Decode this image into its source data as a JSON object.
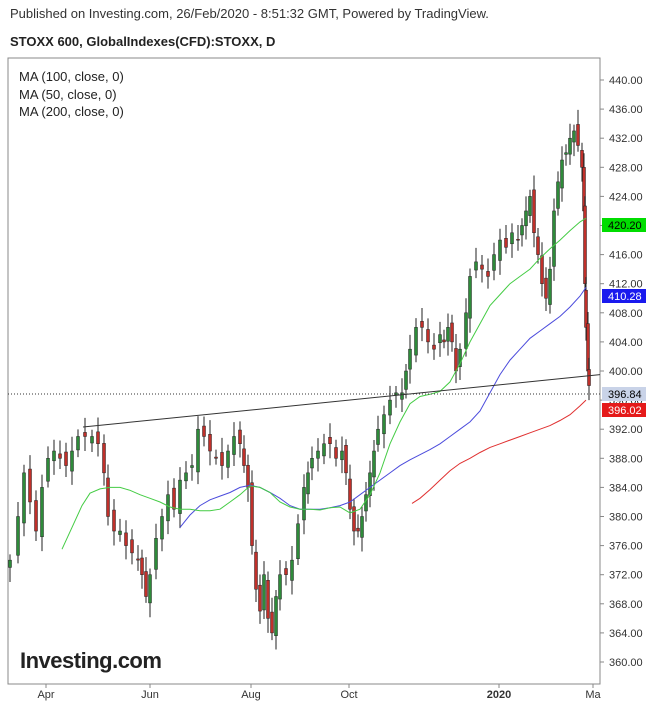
{
  "header": {
    "published": "Published on Investing.com, 26/Feb/2020 - 8:51:32 GMT, Powered by TradingView.",
    "symbol": "STOXX 600, GlobalIndexes(CFD):STOXX, D"
  },
  "legend": [
    {
      "label": "MA (100, close, 0)",
      "color": "#4b4bdc"
    },
    {
      "label": "MA (50, close, 0)",
      "color": "#44cc44"
    },
    {
      "label": "MA (200, close, 0)",
      "color": "#e03030"
    }
  ],
  "logo": {
    "main": "Investing",
    "suffix": ".com"
  },
  "chart_data": {
    "type": "candlestick",
    "ylim": [
      358,
      442
    ],
    "y_ticks": [
      "440.00",
      "436.00",
      "432.00",
      "428.00",
      "424.00",
      "420.00",
      "416.00",
      "412.00",
      "408.00",
      "404.00",
      "400.00",
      "396.00",
      "392.00",
      "388.00",
      "384.00",
      "380.00",
      "376.00",
      "372.00",
      "368.00",
      "364.00",
      "360.00"
    ],
    "x_ticks": [
      {
        "label": "Apr",
        "bold": false
      },
      {
        "label": "Jun",
        "bold": false
      },
      {
        "label": "Aug",
        "bold": false
      },
      {
        "label": "Oct",
        "bold": false
      },
      {
        "label": "2020",
        "bold": true
      },
      {
        "label": "Ma",
        "bold": false
      }
    ],
    "price_labels": [
      {
        "value": 420.2,
        "text": "420.20",
        "bg": "#00dd00",
        "fg": "#000000"
      },
      {
        "value": 410.28,
        "text": "410.28",
        "bg": "#1a1aee",
        "fg": "#ffffff"
      },
      {
        "value": 396.84,
        "text": "396.84",
        "bg": "#c9d3e8",
        "fg": "#000000"
      },
      {
        "value": 396.02,
        "text": "396.02",
        "bg": "#e51a1a",
        "fg": "#ffffff"
      }
    ],
    "current_price": 396.84,
    "trendline": {
      "from": [
        83,
        392.3
      ],
      "to": [
        400,
        399.2
      ]
    },
    "ma_series": [
      {
        "name": "MA (100, close, 0)",
        "color": "#4b4bdc",
        "points": [
          [
            180,
            378.5
          ],
          [
            190,
            380.2
          ],
          [
            200,
            381.5
          ],
          [
            210,
            382.3
          ],
          [
            220,
            382.8
          ],
          [
            230,
            383.3
          ],
          [
            240,
            384.0
          ],
          [
            250,
            384.3
          ],
          [
            260,
            384.0
          ],
          [
            270,
            383.3
          ],
          [
            280,
            382.5
          ],
          [
            290,
            381.5
          ],
          [
            300,
            381.0
          ],
          [
            310,
            381.0
          ],
          [
            320,
            381.0
          ],
          [
            330,
            381.2
          ],
          [
            340,
            381.5
          ],
          [
            350,
            382.0
          ],
          [
            360,
            383.0
          ],
          [
            370,
            384.0
          ],
          [
            380,
            385.0
          ],
          [
            390,
            386.0
          ],
          [
            400,
            387.0
          ],
          [
            410,
            387.8
          ],
          [
            420,
            388.5
          ],
          [
            430,
            389.2
          ],
          [
            440,
            390.0
          ],
          [
            450,
            391.0
          ],
          [
            460,
            392.0
          ],
          [
            470,
            393.0
          ],
          [
            480,
            394.5
          ],
          [
            490,
            397.0
          ],
          [
            500,
            399.5
          ],
          [
            510,
            401.5
          ],
          [
            520,
            403.0
          ],
          [
            530,
            404.5
          ],
          [
            540,
            405.5
          ],
          [
            550,
            406.5
          ],
          [
            560,
            407.5
          ],
          [
            570,
            408.8
          ],
          [
            580,
            410.3
          ],
          [
            586,
            411.5
          ]
        ]
      },
      {
        "name": "MA (50, close, 0)",
        "color": "#44cc44",
        "points": [
          [
            62,
            375.5
          ],
          [
            72,
            378.5
          ],
          [
            82,
            381.5
          ],
          [
            90,
            383.2
          ],
          [
            100,
            383.8
          ],
          [
            110,
            384.0
          ],
          [
            120,
            384.0
          ],
          [
            130,
            383.6
          ],
          [
            140,
            383.0
          ],
          [
            150,
            382.5
          ],
          [
            160,
            382.0
          ],
          [
            170,
            381.3
          ],
          [
            180,
            381.0
          ],
          [
            190,
            381.0
          ],
          [
            200,
            380.8
          ],
          [
            210,
            380.8
          ],
          [
            220,
            381.0
          ],
          [
            230,
            382.0
          ],
          [
            240,
            383.0
          ],
          [
            250,
            384.2
          ],
          [
            260,
            384.0
          ],
          [
            270,
            383.3
          ],
          [
            280,
            382.0
          ],
          [
            290,
            381.3
          ],
          [
            300,
            381.0
          ],
          [
            310,
            381.0
          ],
          [
            320,
            380.9
          ],
          [
            330,
            381.2
          ],
          [
            340,
            381.3
          ],
          [
            350,
            380.5
          ],
          [
            360,
            381.0
          ],
          [
            370,
            383.0
          ],
          [
            380,
            386.0
          ],
          [
            390,
            390.0
          ],
          [
            400,
            393.0
          ],
          [
            410,
            395.5
          ],
          [
            420,
            396.5
          ],
          [
            430,
            396.8
          ],
          [
            440,
            397.2
          ],
          [
            450,
            398.5
          ],
          [
            460,
            401.0
          ],
          [
            470,
            404.0
          ],
          [
            480,
            406.5
          ],
          [
            490,
            409.0
          ],
          [
            500,
            410.5
          ],
          [
            510,
            412.0
          ],
          [
            520,
            413.0
          ],
          [
            530,
            414.0
          ],
          [
            540,
            415.5
          ],
          [
            550,
            416.8
          ],
          [
            560,
            418.0
          ],
          [
            570,
            419.3
          ],
          [
            580,
            420.5
          ],
          [
            586,
            421.0
          ]
        ]
      },
      {
        "name": "MA (200, close, 0)",
        "color": "#e03030",
        "points": [
          [
            412,
            381.8
          ],
          [
            420,
            382.5
          ],
          [
            430,
            383.7
          ],
          [
            440,
            385.0
          ],
          [
            450,
            386.3
          ],
          [
            460,
            387.3
          ],
          [
            470,
            388.0
          ],
          [
            480,
            388.8
          ],
          [
            490,
            389.5
          ],
          [
            500,
            390.0
          ],
          [
            510,
            390.5
          ],
          [
            520,
            391.0
          ],
          [
            530,
            391.5
          ],
          [
            540,
            392.0
          ],
          [
            550,
            392.5
          ],
          [
            560,
            393.2
          ],
          [
            570,
            394.0
          ],
          [
            580,
            395.2
          ],
          [
            586,
            396.0
          ]
        ]
      }
    ]
  }
}
